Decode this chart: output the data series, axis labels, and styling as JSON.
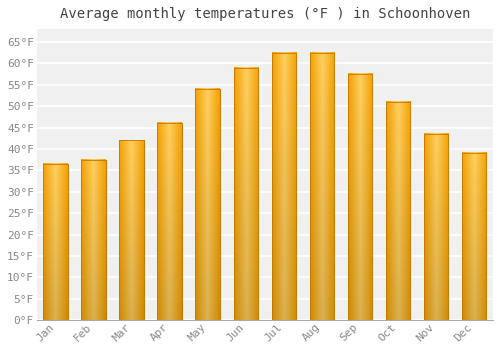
{
  "title": "Average monthly temperatures (°F ) in Schoonhoven",
  "months": [
    "Jan",
    "Feb",
    "Mar",
    "Apr",
    "May",
    "Jun",
    "Jul",
    "Aug",
    "Sep",
    "Oct",
    "Nov",
    "Dec"
  ],
  "values": [
    36.5,
    37.5,
    42,
    46,
    54,
    59,
    62.5,
    62.5,
    57.5,
    51,
    43.5,
    39
  ],
  "bar_color_center": "#FFD060",
  "bar_color_edge": "#F5A000",
  "bar_color_bottom": "#E08000",
  "background_color": "#ffffff",
  "plot_bg_color": "#f0f0f0",
  "grid_color": "#ffffff",
  "ytick_labels": [
    "0°F",
    "5°F",
    "10°F",
    "15°F",
    "20°F",
    "25°F",
    "30°F",
    "35°F",
    "40°F",
    "45°F",
    "50°F",
    "55°F",
    "60°F",
    "65°F"
  ],
  "ytick_values": [
    0,
    5,
    10,
    15,
    20,
    25,
    30,
    35,
    40,
    45,
    50,
    55,
    60,
    65
  ],
  "ylim": [
    0,
    68
  ],
  "title_fontsize": 10,
  "tick_fontsize": 8,
  "bar_width": 0.65
}
